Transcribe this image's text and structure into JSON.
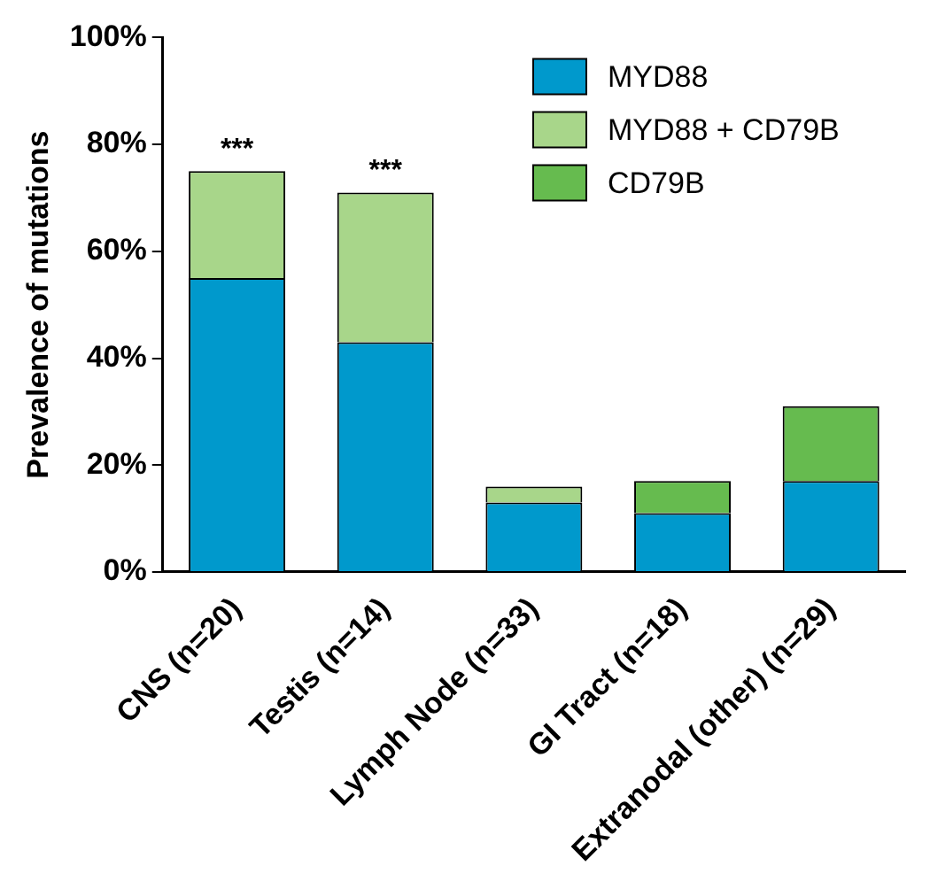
{
  "chart_data": {
    "type": "bar",
    "stacked": true,
    "ylabel": "Prevalence of mutations",
    "categories": [
      "CNS (n=20)",
      "Testis (n=14)",
      "Lymph Node (n=33)",
      "GI Tract (n=18)",
      "Extranodal (other) (n=29)"
    ],
    "series": [
      {
        "name": "MYD88",
        "color": "#0099cc",
        "values": [
          55,
          43,
          13,
          11,
          17
        ]
      },
      {
        "name": "MYD88 + CD79B",
        "color": "#a8d68a",
        "values": [
          20,
          28,
          3,
          null,
          null
        ]
      },
      {
        "name": "CD79B",
        "color": "#66bb4f",
        "values": [
          null,
          null,
          null,
          6,
          14
        ]
      }
    ],
    "ylim": [
      0,
      100
    ],
    "yticks": [
      {
        "value": 0,
        "label": "0%"
      },
      {
        "value": 20,
        "label": "20%"
      },
      {
        "value": 40,
        "label": "40%"
      },
      {
        "value": 60,
        "label": "60%"
      },
      {
        "value": 80,
        "label": "80%"
      },
      {
        "value": 100,
        "label": "100%"
      }
    ],
    "annotations": [
      {
        "text": "***",
        "x": "CNS (n=20)",
        "y": 75
      },
      {
        "text": "***",
        "x": "Testis (n=14)",
        "y": 71
      }
    ],
    "legend": "top right",
    "grid": false
  }
}
